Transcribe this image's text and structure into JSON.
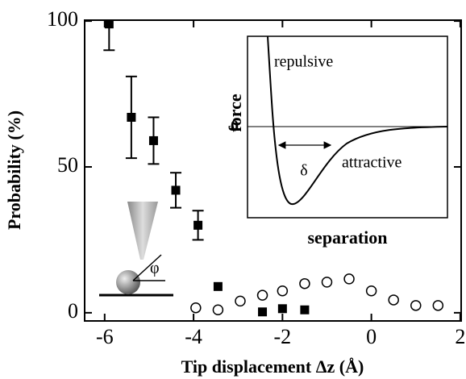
{
  "chart_data": {
    "type": "scatter",
    "x_label": "Tip displacement Δz (Å)",
    "y_label": "Probability (%)",
    "xlim": [
      -6.45,
      2.02
    ],
    "ylim": [
      -2.8,
      100.3
    ],
    "xticks": [
      -6,
      -4,
      -2,
      0,
      2
    ],
    "yticks": [
      0,
      50,
      100
    ],
    "series": [
      {
        "marker": "square-filled",
        "color": "#000000",
        "x": [
          -5.9,
          -5.4,
          -4.9,
          -4.4,
          -3.9,
          -3.45,
          -2.45,
          -2.0,
          -1.5
        ],
        "values": [
          99,
          67,
          59,
          42,
          30,
          9,
          0.3,
          1.4,
          1
        ],
        "errors": [
          9,
          14,
          8,
          6,
          5,
          null,
          null,
          null,
          null
        ]
      },
      {
        "marker": "circle-open",
        "color": "#000000",
        "x": [
          -3.95,
          -3.45,
          -2.95,
          -2.45,
          -2.0,
          -1.5,
          -1.0,
          -0.5,
          0,
          0.5,
          1.0,
          1.5
        ],
        "values": [
          1.7,
          1,
          4,
          6,
          7.5,
          10,
          10.5,
          11.6,
          7.5,
          4.4,
          2.5,
          2.5
        ]
      }
    ],
    "inset": {
      "repulsive": "repulsive",
      "attractive": "attractive",
      "force": "force",
      "zero": "0",
      "delta": "δ",
      "separation": "separation"
    },
    "tip_angle": "φ"
  }
}
